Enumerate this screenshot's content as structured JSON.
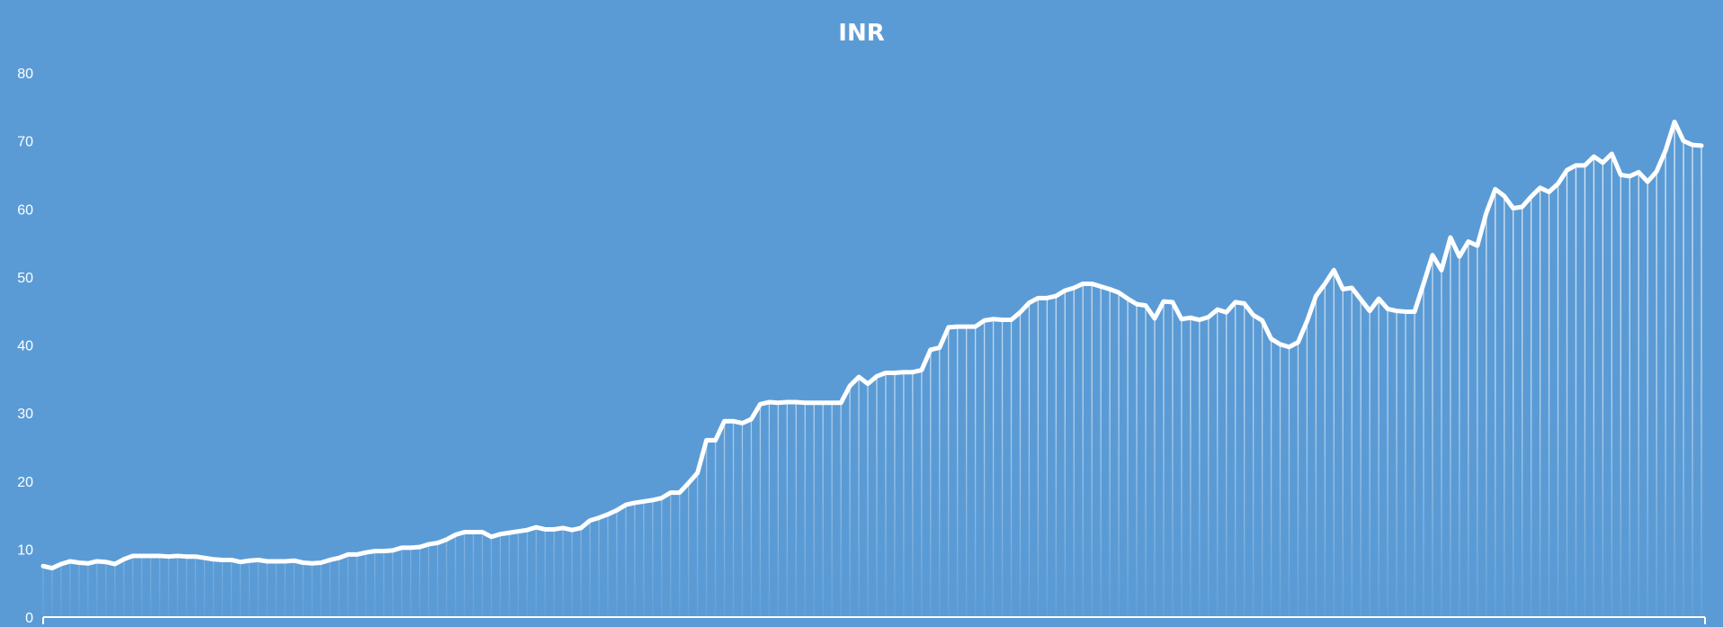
{
  "chart_data": {
    "type": "area",
    "title": "INR",
    "xlabel": "",
    "ylabel": "",
    "ylim": [
      0,
      80
    ],
    "yticks": [
      0,
      10,
      20,
      30,
      40,
      50,
      60,
      70,
      80
    ],
    "grid": false,
    "legend": "none",
    "colors": {
      "background": "#5b9bd5",
      "line": "#ffffff",
      "fill_top": "#ffffff",
      "axis": "#ffffff"
    },
    "values": [
      7.5,
      7.2,
      7.8,
      8.2,
      8.0,
      7.9,
      8.2,
      8.1,
      7.8,
      8.5,
      9.0,
      9.0,
      9.0,
      9.0,
      8.9,
      9.0,
      8.9,
      8.9,
      8.7,
      8.5,
      8.4,
      8.4,
      8.1,
      8.3,
      8.4,
      8.2,
      8.2,
      8.2,
      8.3,
      8.0,
      7.9,
      8.0,
      8.4,
      8.7,
      9.2,
      9.2,
      9.5,
      9.7,
      9.7,
      9.8,
      10.2,
      10.2,
      10.3,
      10.7,
      10.9,
      11.4,
      12.1,
      12.5,
      12.5,
      12.5,
      11.8,
      12.2,
      12.4,
      12.6,
      12.8,
      13.2,
      12.9,
      12.9,
      13.1,
      12.8,
      13.1,
      14.2,
      14.6,
      15.1,
      15.7,
      16.5,
      16.8,
      17.0,
      17.2,
      17.5,
      18.3,
      18.3,
      19.7,
      21.2,
      26.0,
      26.0,
      28.8,
      28.8,
      28.5,
      29.1,
      31.3,
      31.6,
      31.5,
      31.6,
      31.6,
      31.5,
      31.5,
      31.5,
      31.5,
      31.5,
      34.0,
      35.3,
      34.3,
      35.4,
      35.9,
      35.9,
      36.0,
      36.0,
      36.3,
      39.3,
      39.6,
      42.6,
      42.7,
      42.7,
      42.7,
      43.6,
      43.8,
      43.7,
      43.7,
      44.8,
      46.2,
      46.9,
      46.9,
      47.2,
      48.0,
      48.4,
      49.0,
      49.0,
      48.6,
      48.2,
      47.7,
      46.8,
      46.0,
      45.8,
      43.9,
      46.4,
      46.3,
      43.8,
      44.0,
      43.7,
      44.1,
      45.2,
      44.8,
      46.3,
      46.1,
      44.4,
      43.6,
      40.9,
      40.1,
      39.7,
      40.4,
      43.5,
      47.2,
      49.0,
      51.0,
      48.2,
      48.4,
      46.7,
      45.0,
      46.8,
      45.3,
      45.0,
      44.9,
      44.9,
      49.0,
      53.2,
      51.0,
      55.8,
      53.0,
      55.2,
      54.6,
      59.4,
      62.9,
      61.9,
      60.1,
      60.3,
      61.8,
      63.1,
      62.5,
      63.7,
      65.7,
      66.4,
      66.4,
      67.7,
      66.8,
      68.1,
      65.0,
      64.8,
      65.4,
      64.0,
      65.5,
      68.6,
      72.8,
      70.0,
      69.4,
      69.3
    ]
  }
}
